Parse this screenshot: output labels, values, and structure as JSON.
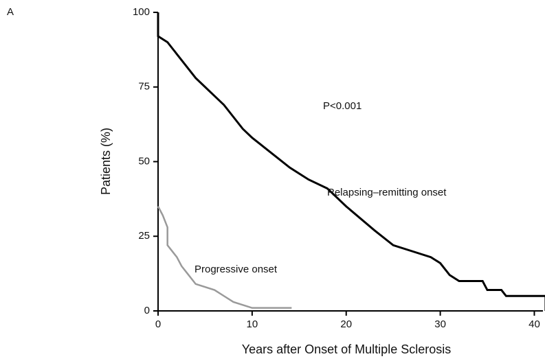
{
  "panel_label": "A",
  "chart_data": {
    "type": "line",
    "x_label": "Years after Onset of Multiple Sclerosis",
    "y_label": "Patients (%)",
    "annotations": [
      "P<0.001",
      "Relapsing–remitting onset",
      "Progressive onset"
    ],
    "xlim": [
      0,
      41.5
    ],
    "xticks": [
      0,
      10,
      20,
      30,
      40
    ],
    "ylim": [
      0,
      100
    ],
    "yticks": [
      0,
      25,
      50,
      75,
      100
    ],
    "series": [
      {
        "color": "#000000",
        "x": [
          0,
          0,
          1,
          2,
          3,
          4,
          5,
          6,
          7,
          8,
          9,
          10,
          12,
          14,
          16,
          18,
          20,
          23,
          25,
          27,
          29,
          30,
          31,
          32,
          34.5,
          35,
          36.5,
          37,
          41.2,
          41.2
        ],
        "values": [
          100,
          92,
          90,
          86,
          82,
          78,
          75,
          72,
          69,
          65,
          61,
          58,
          53,
          48,
          44,
          41,
          35,
          27,
          22,
          20,
          18,
          16,
          12,
          10,
          10,
          7,
          7,
          5,
          5,
          0
        ]
      },
      {
        "color": "#9a9a9a",
        "x": [
          0,
          0.5,
          1,
          1,
          2,
          2.5,
          3,
          4,
          6,
          7,
          8,
          10,
          14.2
        ],
        "values": [
          35,
          32,
          28,
          22,
          18,
          15,
          13,
          9,
          7,
          5,
          3,
          1,
          1
        ]
      }
    ]
  }
}
